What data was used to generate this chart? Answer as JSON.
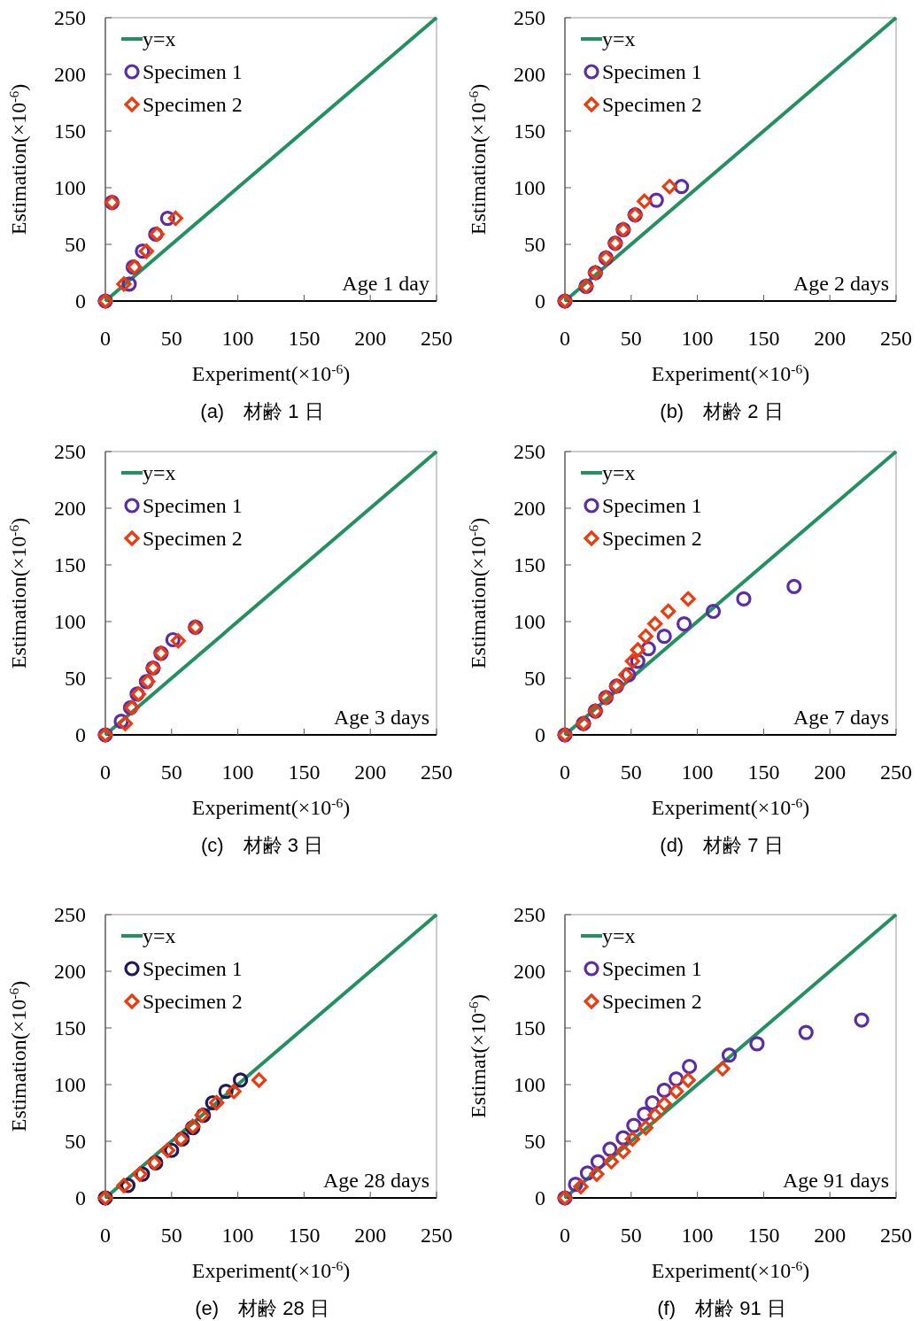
{
  "chart_data": [
    {
      "type": "scatter",
      "xlabel": "Experiment(×10$^{-6}$)",
      "ylabel": "Estimation(×10$^{-6}$)",
      "xlim": [
        0,
        250
      ],
      "ylim": [
        0,
        250
      ],
      "xticks": [
        0,
        50,
        100,
        150,
        200,
        250
      ],
      "yticks": [
        0,
        50,
        100,
        150,
        200,
        250
      ],
      "legend": "top left",
      "annotations": [
        "Age 1 day",
        "(a)　材齢 1 日"
      ],
      "series": [
        {
          "name": "y=x",
          "type": "line",
          "color": "#239060",
          "x": [
            0,
            250
          ],
          "values": [
            0,
            250
          ],
          "marker": "none",
          "line_style": "solid"
        },
        {
          "name": "Specimen 1",
          "type": "scatter",
          "color": "#5b2ca8",
          "marker": "circle",
          "x": [
            0,
            18,
            21,
            28,
            38,
            47,
            5
          ],
          "values": [
            0,
            15,
            30,
            44,
            59,
            73,
            87
          ]
        },
        {
          "name": "Specimen 2",
          "type": "scatter",
          "color": "#ee3a0c",
          "marker": "diamond",
          "x": [
            0,
            14,
            22,
            31,
            39,
            53,
            5
          ],
          "values": [
            0,
            15,
            30,
            44,
            59,
            73,
            87
          ]
        }
      ]
    },
    {
      "type": "scatter",
      "xlabel": "Experiment(×10$^{-6}$)",
      "ylabel": "Estimation(×10$^{-6}$)",
      "xlim": [
        0,
        250
      ],
      "ylim": [
        0,
        250
      ],
      "xticks": [
        0,
        50,
        100,
        150,
        200,
        250
      ],
      "yticks": [
        0,
        50,
        100,
        150,
        200,
        250
      ],
      "legend": "top left",
      "annotations": [
        "Age 2 days",
        "(b)　材齢 2 日"
      ],
      "series": [
        {
          "name": "y=x",
          "type": "line",
          "color": "#239060",
          "x": [
            0,
            250
          ],
          "values": [
            0,
            250
          ],
          "marker": "none",
          "line_style": "solid"
        },
        {
          "name": "Specimen 1",
          "type": "scatter",
          "color": "#5b2ca8",
          "marker": "circle",
          "x": [
            0,
            16,
            23,
            31,
            38,
            44,
            53,
            69,
            88
          ],
          "values": [
            0,
            13,
            25,
            38,
            51,
            63,
            76,
            89,
            101
          ]
        },
        {
          "name": "Specimen 2",
          "type": "scatter",
          "color": "#ee3a0c",
          "marker": "diamond",
          "x": [
            0,
            16,
            23,
            31,
            38,
            44,
            53,
            60,
            79
          ],
          "values": [
            0,
            13,
            25,
            38,
            51,
            63,
            76,
            88,
            101
          ]
        }
      ]
    },
    {
      "type": "scatter",
      "xlabel": "Experiment(×10$^{-6}$)",
      "ylabel": "Estimation(×10$^{-6}$)",
      "xlim": [
        0,
        250
      ],
      "ylim": [
        0,
        250
      ],
      "xticks": [
        0,
        50,
        100,
        150,
        200,
        250
      ],
      "yticks": [
        0,
        50,
        100,
        150,
        200,
        250
      ],
      "legend": "top left",
      "annotations": [
        "Age 3 days",
        "(c)　材齢 3 日"
      ],
      "series": [
        {
          "name": "y=x",
          "type": "line",
          "color": "#239060",
          "x": [
            0,
            250
          ],
          "values": [
            0,
            250
          ],
          "marker": "none",
          "line_style": "solid"
        },
        {
          "name": "Specimen 1",
          "type": "scatter",
          "color": "#5b2ca8",
          "marker": "circle",
          "x": [
            0,
            12,
            19,
            24,
            31,
            36,
            42,
            51,
            68
          ],
          "values": [
            0,
            12,
            24,
            36,
            47,
            59,
            72,
            84,
            95
          ]
        },
        {
          "name": "Specimen 2",
          "type": "scatter",
          "color": "#ee3a0c",
          "marker": "diamond",
          "x": [
            0,
            15,
            20,
            25,
            32,
            36,
            42,
            55,
            68
          ],
          "values": [
            0,
            10,
            24,
            36,
            47,
            59,
            72,
            83,
            95
          ]
        }
      ]
    },
    {
      "type": "scatter",
      "xlabel": "Experiment(×10$^{-6}$)",
      "ylabel": "Estimation(×10$^{-6}$)",
      "xlim": [
        0,
        250
      ],
      "ylim": [
        0,
        250
      ],
      "xticks": [
        0,
        50,
        100,
        150,
        200,
        250
      ],
      "yticks": [
        0,
        50,
        100,
        150,
        200,
        250
      ],
      "legend": "top left",
      "annotations": [
        "Age 7 days",
        "(d)　材齢 7 日"
      ],
      "series": [
        {
          "name": "y=x",
          "type": "line",
          "color": "#239060",
          "x": [
            0,
            250
          ],
          "values": [
            0,
            250
          ],
          "marker": "none",
          "line_style": "solid"
        },
        {
          "name": "Specimen 1",
          "type": "scatter",
          "color": "#5b2ca8",
          "marker": "circle",
          "x": [
            0,
            14,
            23,
            31,
            39,
            48,
            55,
            63,
            75,
            90,
            112,
            135,
            173
          ],
          "values": [
            0,
            10,
            21,
            33,
            43,
            53,
            65,
            76,
            87,
            98,
            109,
            120,
            131
          ]
        },
        {
          "name": "Specimen 2",
          "type": "scatter",
          "color": "#ee3a0c",
          "marker": "diamond",
          "x": [
            0,
            14,
            23,
            31,
            39,
            46,
            51,
            55,
            61,
            68,
            78,
            93
          ],
          "values": [
            0,
            10,
            21,
            33,
            43,
            53,
            65,
            75,
            87,
            98,
            109,
            120
          ]
        }
      ]
    },
    {
      "type": "scatter",
      "xlabel": "Experiment(×10$^{-6}$)",
      "ylabel": "Estimation(×10$^{-6}$)",
      "xlim": [
        0,
        250
      ],
      "ylim": [
        0,
        250
      ],
      "xticks": [
        0,
        50,
        100,
        150,
        200,
        250
      ],
      "yticks": [
        0,
        50,
        100,
        150,
        200,
        250
      ],
      "legend": "top left",
      "annotations": [
        "Age 28 days",
        "(e)　材齢 28 日"
      ],
      "series": [
        {
          "name": "y=x",
          "type": "line",
          "color": "#239060",
          "x": [
            0,
            250
          ],
          "values": [
            0,
            250
          ],
          "marker": "none",
          "line_style": "solid"
        },
        {
          "name": "Specimen 1",
          "type": "scatter",
          "color": "#1f1a5a",
          "marker": "circle",
          "x": [
            0,
            17,
            28,
            38,
            50,
            58,
            66,
            74,
            81,
            91,
            102
          ],
          "values": [
            0,
            11,
            21,
            31,
            42,
            52,
            62,
            73,
            84,
            94,
            104
          ]
        },
        {
          "name": "Specimen 2",
          "type": "scatter",
          "color": "#ee3a0c",
          "marker": "diamond",
          "x": [
            0,
            14,
            26,
            37,
            47,
            57,
            66,
            73,
            84,
            97,
            116
          ],
          "values": [
            0,
            11,
            21,
            31,
            42,
            52,
            63,
            73,
            84,
            94,
            104
          ]
        }
      ]
    },
    {
      "type": "scatter",
      "xlabel": "Experiment(×10$^{-6}$)",
      "ylabel": "Estimat(×10$^{-6}$)",
      "xlim": [
        0,
        250
      ],
      "ylim": [
        0,
        250
      ],
      "xticks": [
        0,
        50,
        100,
        150,
        200,
        250
      ],
      "yticks": [
        0,
        50,
        100,
        150,
        200,
        250
      ],
      "legend": "top left",
      "annotations": [
        "Age 91 days",
        "(f)　材齢 91 日"
      ],
      "series": [
        {
          "name": "y=x",
          "type": "line",
          "color": "#239060",
          "x": [
            0,
            250
          ],
          "values": [
            0,
            250
          ],
          "marker": "none",
          "line_style": "solid"
        },
        {
          "name": "Specimen 1",
          "type": "scatter",
          "color": "#5b2ca8",
          "marker": "circle",
          "x": [
            0,
            8,
            17,
            25,
            34,
            44,
            52,
            60,
            66,
            75,
            84,
            94,
            124,
            145,
            182,
            224
          ],
          "values": [
            0,
            12,
            22,
            32,
            43,
            53,
            64,
            74,
            84,
            95,
            105,
            116,
            126,
            136,
            146,
            157
          ]
        },
        {
          "name": "Specimen 2",
          "type": "scatter",
          "color": "#ee3a0c",
          "marker": "diamond",
          "x": [
            0,
            12,
            24,
            35,
            44,
            51,
            61,
            68,
            75,
            84,
            93,
            119
          ],
          "values": [
            0,
            10,
            21,
            32,
            41,
            52,
            62,
            73,
            83,
            94,
            104,
            114
          ]
        }
      ]
    }
  ]
}
